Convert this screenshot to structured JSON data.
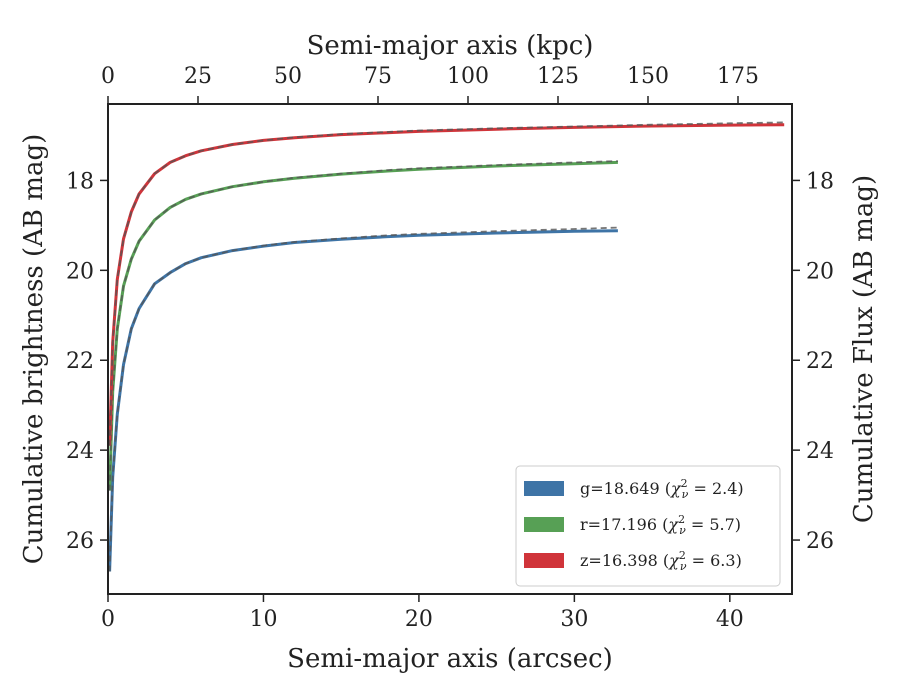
{
  "chart_data": {
    "type": "line",
    "title": "",
    "xlabel": "Semi-major axis (arcsec)",
    "ylabel": "Cumulative brightness (AB mag)",
    "x2label": "Semi-major axis (kpc)",
    "y2label": "Cumulative Flux (AB mag)",
    "xlim": [
      0,
      44
    ],
    "ylim": [
      27.2,
      16.3
    ],
    "x2lim": [
      0,
      190
    ],
    "y_inverted": true,
    "xticks": [
      "0",
      "10",
      "20",
      "30",
      "40"
    ],
    "x2ticks": [
      "0",
      "25",
      "50",
      "75",
      "100",
      "125",
      "150",
      "175"
    ],
    "yticks": [
      "18",
      "20",
      "22",
      "24",
      "26"
    ],
    "grid": false,
    "legend_position": "lower-right",
    "series": [
      {
        "name": "g=18.649 (χ²ν = 2.4)",
        "legend": {
          "main": "g=18.649 (",
          "chi": "χ",
          "sup": "2",
          "sub": "ν",
          "tail": " = 2.4)"
        },
        "color": "#3e74a6",
        "x": [
          0.1,
          0.3,
          0.6,
          1.0,
          1.5,
          2,
          3,
          4,
          5,
          6,
          8,
          10,
          12,
          15,
          18,
          20,
          25,
          30,
          32.8
        ],
        "y": [
          26.7,
          24.6,
          23.2,
          22.1,
          21.3,
          20.85,
          20.3,
          20.05,
          19.85,
          19.72,
          19.56,
          19.46,
          19.38,
          19.31,
          19.25,
          19.22,
          19.17,
          19.13,
          19.12
        ],
        "model_y": [
          26.7,
          24.6,
          23.2,
          22.1,
          21.3,
          20.85,
          20.3,
          20.05,
          19.85,
          19.72,
          19.56,
          19.45,
          19.37,
          19.29,
          19.22,
          19.19,
          19.13,
          19.08,
          19.05
        ]
      },
      {
        "name": "r=17.196 (χ²ν = 5.7)",
        "legend": {
          "main": "r=17.196 (",
          "chi": "χ",
          "sup": "2",
          "sub": "ν",
          "tail": " = 5.7)"
        },
        "color": "#57a055",
        "x": [
          0.1,
          0.3,
          0.6,
          1.0,
          1.5,
          2,
          3,
          4,
          5,
          6,
          8,
          10,
          12,
          15,
          18,
          20,
          25,
          30,
          32.8
        ],
        "y": [
          24.9,
          22.7,
          21.3,
          20.35,
          19.75,
          19.35,
          18.88,
          18.6,
          18.42,
          18.3,
          18.14,
          18.03,
          17.95,
          17.86,
          17.79,
          17.75,
          17.68,
          17.63,
          17.6
        ],
        "model_y": [
          24.9,
          22.7,
          21.3,
          20.35,
          19.75,
          19.35,
          18.88,
          18.6,
          18.42,
          18.3,
          18.14,
          18.03,
          17.94,
          17.85,
          17.77,
          17.73,
          17.66,
          17.6,
          17.57
        ]
      },
      {
        "name": "z=16.398 (χ²ν = 6.3)",
        "legend": {
          "main": "z=16.398 (",
          "chi": "χ",
          "sup": "2",
          "sub": "ν",
          "tail": " = 6.3)"
        },
        "color": "#d0343a",
        "x": [
          0.1,
          0.3,
          0.6,
          1.0,
          1.5,
          2,
          3,
          4,
          5,
          6,
          8,
          10,
          12,
          15,
          20,
          25,
          30,
          35,
          40,
          43.5
        ],
        "y": [
          23.9,
          21.6,
          20.2,
          19.3,
          18.7,
          18.3,
          17.85,
          17.6,
          17.45,
          17.34,
          17.2,
          17.11,
          17.05,
          16.98,
          16.91,
          16.86,
          16.82,
          16.79,
          16.77,
          16.76
        ],
        "model_y": [
          23.9,
          21.6,
          20.2,
          19.3,
          18.7,
          18.3,
          17.85,
          17.6,
          17.45,
          17.34,
          17.2,
          17.11,
          17.04,
          16.97,
          16.89,
          16.84,
          16.8,
          16.76,
          16.73,
          16.71
        ]
      }
    ]
  }
}
